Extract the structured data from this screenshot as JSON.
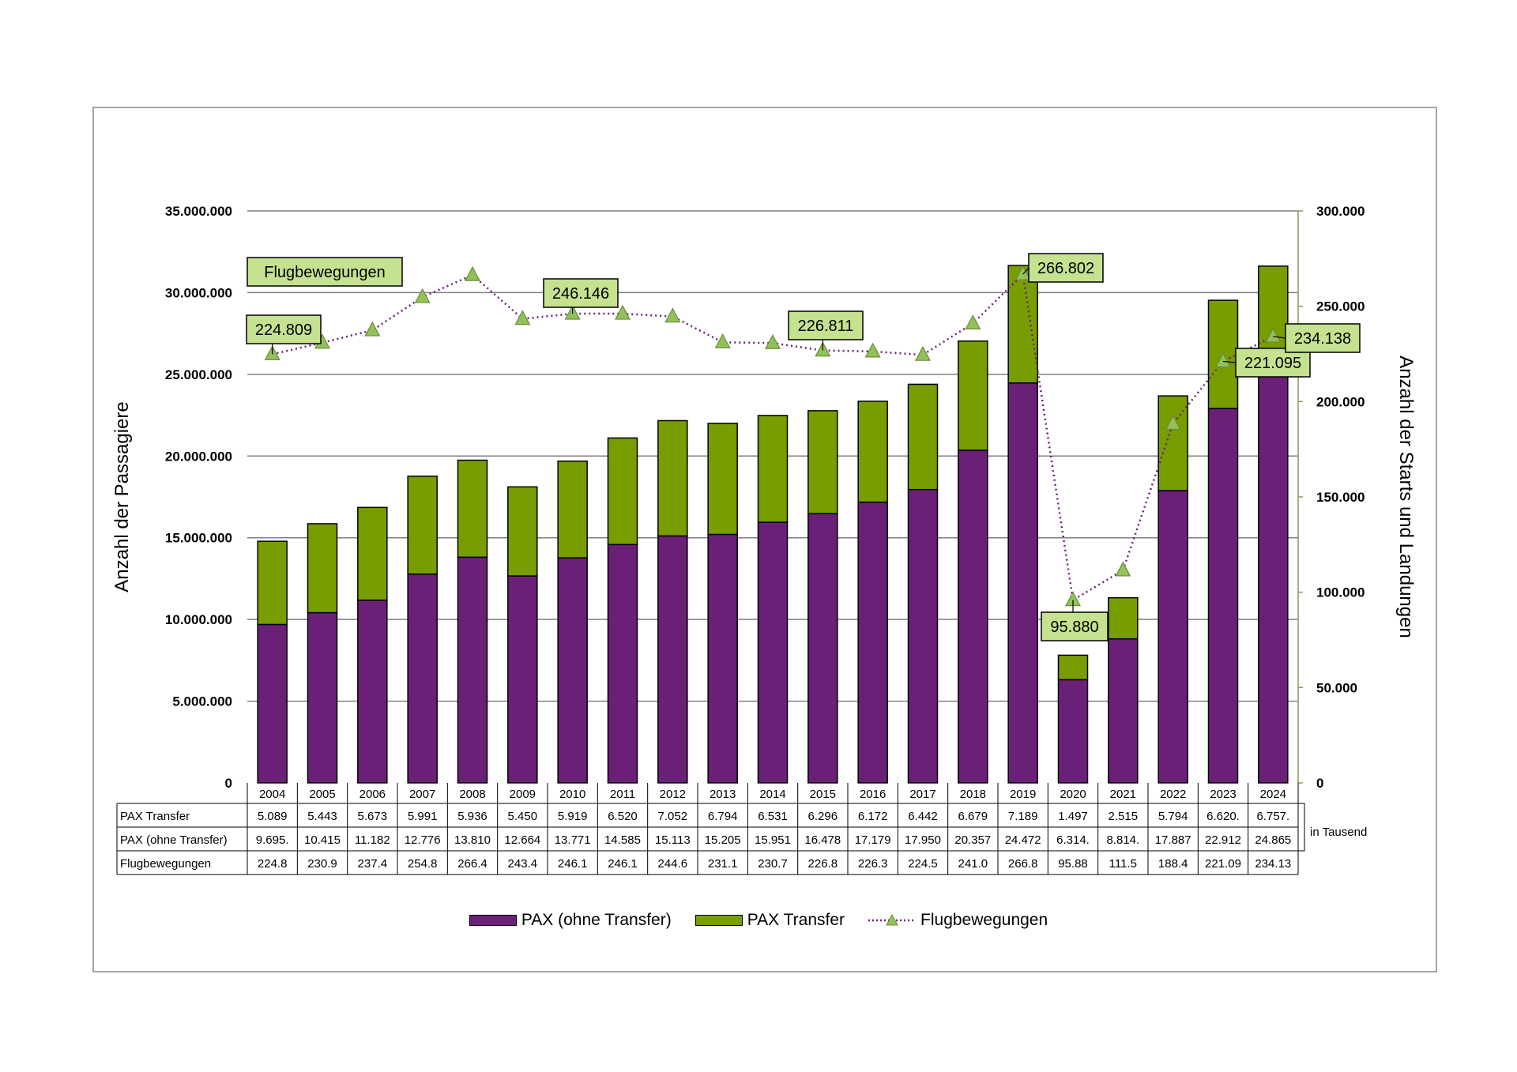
{
  "colors": {
    "pax_ohne_transfer": "#6b2077",
    "pax_transfer": "#789d00",
    "flugbewegungen_line": "#6b2077",
    "marker": "#92c15a",
    "callout_fill": "#c4e28f",
    "grid": "#808080"
  },
  "axes": {
    "left_title": "Anzahl der Passagiere",
    "right_title": "Anzahl der Starts und Landungen",
    "left_ticks": [
      "0",
      "5.000.000",
      "10.000.000",
      "15.000.000",
      "20.000.000",
      "25.000.000",
      "30.000.000",
      "35.000.000"
    ],
    "right_ticks": [
      "0",
      "50.000",
      "100.000",
      "150.000",
      "200.000",
      "250.000",
      "300.000"
    ],
    "unit_note": "in Tausend"
  },
  "table": {
    "row_labels": [
      "PAX Transfer",
      "PAX (ohne Transfer)",
      "Flugbewegungen"
    ],
    "pax_transfer": [
      "5.089",
      "5.443",
      "5.673",
      "5.991",
      "5.936",
      "5.450",
      "5.919",
      "6.520",
      "7.052",
      "6.794",
      "6.531",
      "6.296",
      "6.172",
      "6.442",
      "6.679",
      "7.189",
      "1.497",
      "2.515",
      "5.794",
      "6.620.",
      "6.757."
    ],
    "pax_ohne_transfer": [
      "9.695.",
      "10.415",
      "11.182",
      "12.776",
      "13.810",
      "12.664",
      "13.771",
      "14.585",
      "15.113",
      "15.205",
      "15.951",
      "16.478",
      "17.179",
      "17.950",
      "20.357",
      "24.472",
      "6.314.",
      "8.814.",
      "17.887",
      "22.912",
      "24.865"
    ],
    "flugbewegungen": [
      "224.8",
      "230.9",
      "237.4",
      "254.8",
      "266.4",
      "243.4",
      "246.1",
      "246.1",
      "244.6",
      "231.1",
      "230.7",
      "226.8",
      "226.3",
      "224.5",
      "241.0",
      "266.8",
      "95.88",
      "111.5",
      "188.4",
      "221.09",
      "234.13"
    ]
  },
  "callouts": [
    {
      "text": "Flugbewegungen"
    },
    {
      "text": "224.809"
    },
    {
      "text": "246.146"
    },
    {
      "text": "226.811"
    },
    {
      "text": "266.802"
    },
    {
      "text": "95.880"
    },
    {
      "text": "221.095"
    },
    {
      "text": "234.138"
    }
  ],
  "legend": {
    "pax_ohne_transfer": "PAX (ohne Transfer)",
    "pax_transfer": "PAX Transfer",
    "flugbewegungen": "Flugbewegungen"
  },
  "chart_data": {
    "type": "bar",
    "stacked": true,
    "categories": [
      "2004",
      "2005",
      "2006",
      "2007",
      "2008",
      "2009",
      "2010",
      "2011",
      "2012",
      "2013",
      "2014",
      "2015",
      "2016",
      "2017",
      "2018",
      "2019",
      "2020",
      "2021",
      "2022",
      "2023",
      "2024"
    ],
    "ylabel": "Anzahl der Passagiere",
    "ylim": [
      0,
      35000000
    ],
    "y2label": "Anzahl der Starts und Landungen",
    "y2lim": [
      0,
      300000
    ],
    "grid": true,
    "legend_position": "bottom",
    "series": [
      {
        "name": "PAX (ohne Transfer)",
        "type": "bar",
        "axis": "left",
        "values": [
          9695000,
          10415000,
          11182000,
          12776000,
          13810000,
          12664000,
          13771000,
          14585000,
          15113000,
          15205000,
          15951000,
          16478000,
          17179000,
          17950000,
          20357000,
          24472000,
          6314000,
          8814000,
          17887000,
          22912000,
          24865000
        ]
      },
      {
        "name": "PAX Transfer",
        "type": "bar",
        "axis": "left",
        "values": [
          5089000,
          5443000,
          5673000,
          5991000,
          5936000,
          5450000,
          5919000,
          6520000,
          7052000,
          6794000,
          6531000,
          6296000,
          6172000,
          6442000,
          6679000,
          7189000,
          1497000,
          2515000,
          5794000,
          6620000,
          6757000
        ]
      },
      {
        "name": "Flugbewegungen",
        "type": "line",
        "axis": "right",
        "values": [
          224809,
          230900,
          237400,
          254800,
          266400,
          243400,
          246146,
          246100,
          244600,
          231100,
          230700,
          226811,
          226300,
          224500,
          241000,
          266802,
          95880,
          111500,
          188400,
          221095,
          234138
        ]
      }
    ]
  }
}
